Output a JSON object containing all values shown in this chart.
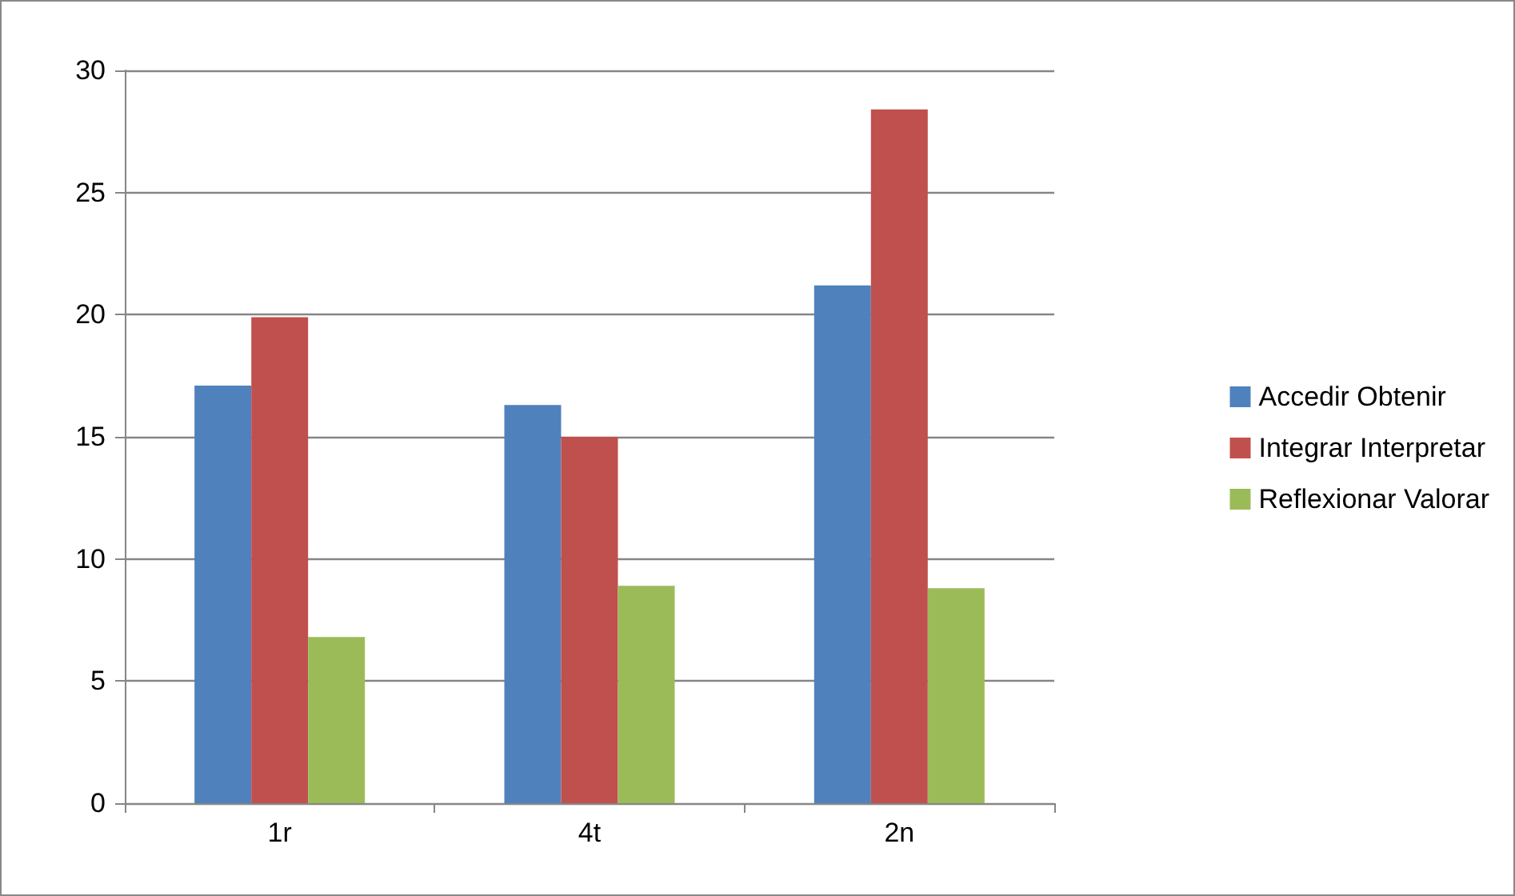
{
  "chart_data": {
    "type": "bar",
    "categories": [
      "1r",
      "4t",
      "2n"
    ],
    "series": [
      {
        "name": "Accedir Obtenir",
        "color": "#4f81bd",
        "values": [
          17.1,
          16.3,
          21.2
        ]
      },
      {
        "name": "Integrar Interpretar",
        "color": "#c0504d",
        "values": [
          19.9,
          15.0,
          28.4
        ]
      },
      {
        "name": "Reflexionar Valorar",
        "color": "#9bbb59",
        "values": [
          6.8,
          8.9,
          8.8
        ]
      }
    ],
    "ylim": [
      0,
      30
    ],
    "yticks": [
      0,
      5,
      10,
      15,
      20,
      25,
      30
    ],
    "grid": "y",
    "legend": "right"
  }
}
